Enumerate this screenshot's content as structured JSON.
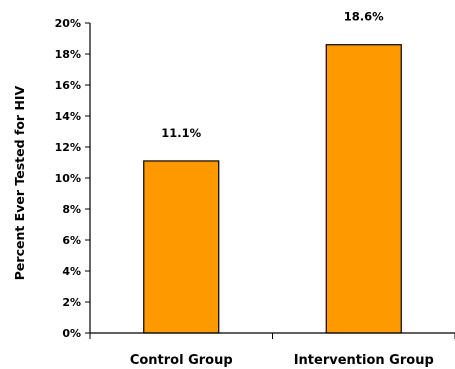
{
  "chart_data": {
    "type": "bar",
    "title": "",
    "xlabel": "",
    "ylabel": "Percent Ever Tested for HIV",
    "categories": [
      "Control Group",
      "Intervention Group"
    ],
    "values": [
      11.1,
      18.6
    ],
    "data_labels": [
      "11.1%",
      "18.6%"
    ],
    "ylim": [
      0,
      20
    ],
    "yticks": [
      0,
      2,
      4,
      6,
      8,
      10,
      12,
      14,
      16,
      18,
      20
    ],
    "ytick_labels": [
      "0%",
      "2%",
      "4%",
      "6%",
      "8%",
      "10%",
      "12%",
      "14%",
      "16%",
      "18%",
      "20%"
    ],
    "bar_color": "#FF9900",
    "bar_edge_color": "#000000",
    "grid": false,
    "legend": "none"
  }
}
